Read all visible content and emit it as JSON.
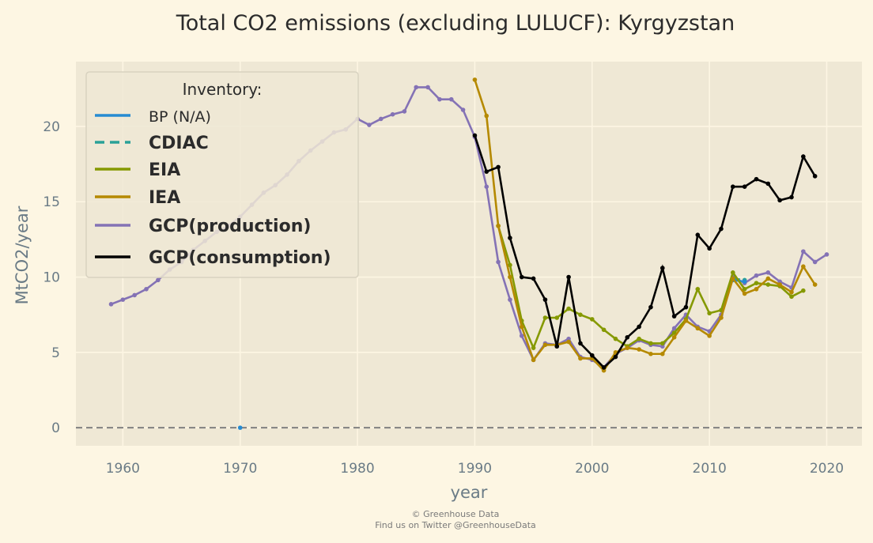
{
  "chart_data": {
    "type": "line",
    "title": "Total CO2 emissions (excluding LULUCF): Kyrgyzstan",
    "xlabel": "year",
    "ylabel": "MtCO2/year",
    "xlim": [
      1956,
      2023
    ],
    "ylim": [
      -1.2,
      24.3
    ],
    "x_ticks": [
      1960,
      1970,
      1980,
      1990,
      2000,
      2010,
      2020
    ],
    "y_ticks": [
      0,
      5,
      10,
      15,
      20
    ],
    "grid": true,
    "legend_placement": "top-left",
    "legend_title": "Inventory:",
    "reference_line": {
      "y": 0,
      "style": "dashed",
      "color": "#808080"
    },
    "series": [
      {
        "name": "GCP(production)",
        "color": "#8472b5",
        "dash": false,
        "points": [
          [
            1959,
            8.2
          ],
          [
            1960,
            8.5
          ],
          [
            1961,
            8.8
          ],
          [
            1962,
            9.2
          ],
          [
            1963,
            9.8
          ],
          [
            1964,
            10.5
          ],
          [
            1965,
            11.0
          ],
          [
            1966,
            11.8
          ],
          [
            1967,
            12.4
          ],
          [
            1968,
            13.0
          ],
          [
            1969,
            13.4
          ],
          [
            1970,
            14.0
          ],
          [
            1971,
            14.8
          ],
          [
            1972,
            15.6
          ],
          [
            1973,
            16.1
          ],
          [
            1974,
            16.8
          ],
          [
            1975,
            17.7
          ],
          [
            1976,
            18.4
          ],
          [
            1977,
            19.0
          ],
          [
            1978,
            19.6
          ],
          [
            1979,
            19.8
          ],
          [
            1980,
            20.5
          ],
          [
            1981,
            20.1
          ],
          [
            1982,
            20.5
          ],
          [
            1983,
            20.8
          ],
          [
            1984,
            21.0
          ],
          [
            1985,
            22.6
          ],
          [
            1986,
            22.6
          ],
          [
            1987,
            21.8
          ],
          [
            1988,
            21.8
          ],
          [
            1989,
            21.1
          ],
          [
            1990,
            19.3
          ],
          [
            1991,
            16.0
          ],
          [
            1992,
            11.0
          ],
          [
            1993,
            8.5
          ],
          [
            1994,
            6.1
          ],
          [
            1995,
            4.5
          ],
          [
            1996,
            5.6
          ],
          [
            1997,
            5.5
          ],
          [
            1998,
            5.9
          ],
          [
            1999,
            4.7
          ],
          [
            2000,
            4.5
          ],
          [
            2001,
            4.0
          ],
          [
            2002,
            4.9
          ],
          [
            2003,
            5.3
          ],
          [
            2004,
            5.8
          ],
          [
            2005,
            5.5
          ],
          [
            2006,
            5.4
          ],
          [
            2007,
            6.6
          ],
          [
            2008,
            7.5
          ],
          [
            2009,
            6.7
          ],
          [
            2010,
            6.4
          ],
          [
            2011,
            7.5
          ],
          [
            2012,
            10.0
          ],
          [
            2013,
            9.6
          ],
          [
            2014,
            10.1
          ],
          [
            2015,
            10.3
          ],
          [
            2016,
            9.7
          ],
          [
            2017,
            9.3
          ],
          [
            2018,
            11.7
          ],
          [
            2019,
            11.0
          ],
          [
            2020,
            11.5
          ]
        ]
      },
      {
        "name": "CDIAC",
        "color": "#2aa198",
        "dash": true,
        "points": [
          [
            2012,
            9.9
          ],
          [
            2013,
            9.8
          ]
        ]
      },
      {
        "name": "BP (N/A)",
        "color": "#268bd2",
        "dash": false,
        "points": [
          [
            1970,
            0
          ],
          [
            2012,
            9.8
          ],
          [
            2013,
            9.7
          ]
        ]
      },
      {
        "name": "EIA",
        "color": "#859900",
        "dash": false,
        "points": [
          [
            1992,
            13.4
          ],
          [
            1993,
            10.8
          ],
          [
            1994,
            7.1
          ],
          [
            1995,
            5.3
          ],
          [
            1996,
            7.3
          ],
          [
            1997,
            7.3
          ],
          [
            1998,
            7.9
          ],
          [
            1999,
            7.5
          ],
          [
            2000,
            7.2
          ],
          [
            2001,
            6.5
          ],
          [
            2002,
            5.9
          ],
          [
            2003,
            5.4
          ],
          [
            2004,
            5.9
          ],
          [
            2005,
            5.6
          ],
          [
            2006,
            5.6
          ],
          [
            2007,
            6.3
          ],
          [
            2008,
            7.2
          ],
          [
            2009,
            9.2
          ],
          [
            2010,
            7.6
          ],
          [
            2011,
            7.8
          ],
          [
            2012,
            10.3
          ],
          [
            2013,
            9.2
          ],
          [
            2014,
            9.6
          ],
          [
            2015,
            9.5
          ],
          [
            2016,
            9.4
          ],
          [
            2017,
            8.7
          ],
          [
            2018,
            9.1
          ]
        ]
      },
      {
        "name": "IEA",
        "color": "#b58900",
        "dash": false,
        "points": [
          [
            1990,
            23.1
          ],
          [
            1991,
            20.7
          ],
          [
            1992,
            13.4
          ],
          [
            1993,
            10.0
          ],
          [
            1994,
            6.7
          ],
          [
            1995,
            4.5
          ],
          [
            1996,
            5.5
          ],
          [
            1997,
            5.5
          ],
          [
            1998,
            5.7
          ],
          [
            1999,
            4.6
          ],
          [
            2000,
            4.6
          ],
          [
            2001,
            3.8
          ],
          [
            2002,
            5.0
          ],
          [
            2003,
            5.3
          ],
          [
            2004,
            5.2
          ],
          [
            2005,
            4.9
          ],
          [
            2006,
            4.9
          ],
          [
            2007,
            6.0
          ],
          [
            2008,
            7.1
          ],
          [
            2009,
            6.6
          ],
          [
            2010,
            6.1
          ],
          [
            2011,
            7.3
          ],
          [
            2012,
            9.9
          ],
          [
            2013,
            8.9
          ],
          [
            2014,
            9.2
          ],
          [
            2015,
            9.9
          ],
          [
            2016,
            9.5
          ],
          [
            2017,
            9.0
          ],
          [
            2018,
            10.7
          ],
          [
            2019,
            9.5
          ]
        ]
      },
      {
        "name": "GCP(consumption)",
        "color": "#000000",
        "dash": false,
        "points": [
          [
            1990,
            19.4
          ],
          [
            1991,
            17.0
          ],
          [
            1992,
            17.3
          ],
          [
            1993,
            12.6
          ],
          [
            1994,
            10.0
          ],
          [
            1995,
            9.9
          ],
          [
            1996,
            8.5
          ],
          [
            1997,
            5.4
          ],
          [
            1998,
            10.0
          ],
          [
            1999,
            5.6
          ],
          [
            2000,
            4.8
          ],
          [
            2001,
            4.0
          ],
          [
            2002,
            4.7
          ],
          [
            2003,
            6.0
          ],
          [
            2004,
            6.7
          ],
          [
            2005,
            8.0
          ],
          [
            2006,
            10.6
          ],
          [
            2007,
            7.4
          ],
          [
            2008,
            8.0
          ],
          [
            2009,
            12.8
          ],
          [
            2010,
            11.9
          ],
          [
            2011,
            13.2
          ],
          [
            2012,
            16.0
          ],
          [
            2013,
            16.0
          ],
          [
            2014,
            16.5
          ],
          [
            2015,
            16.2
          ],
          [
            2016,
            15.1
          ],
          [
            2017,
            15.3
          ],
          [
            2018,
            18.0
          ],
          [
            2019,
            16.7
          ]
        ]
      }
    ],
    "legend": [
      {
        "name": "BP (N/A)",
        "color": "#268bd2",
        "dash": false,
        "bold": false
      },
      {
        "name": "CDIAC",
        "color": "#2aa198",
        "dash": true,
        "bold": true
      },
      {
        "name": "EIA",
        "color": "#859900",
        "dash": false,
        "bold": true
      },
      {
        "name": "IEA",
        "color": "#b58900",
        "dash": false,
        "bold": true
      },
      {
        "name": "GCP(production)",
        "color": "#8472b5",
        "dash": false,
        "bold": true
      },
      {
        "name": "GCP(consumption)",
        "color": "#000000",
        "dash": false,
        "bold": true
      }
    ]
  },
  "credits": {
    "line1": "© Greenhouse Data",
    "line2": "Find us on Twitter @GreenhouseData"
  },
  "colors": {
    "background": "#fdf6e3",
    "plot_background": "#efe8d5",
    "grid": "#fdf6e3"
  }
}
